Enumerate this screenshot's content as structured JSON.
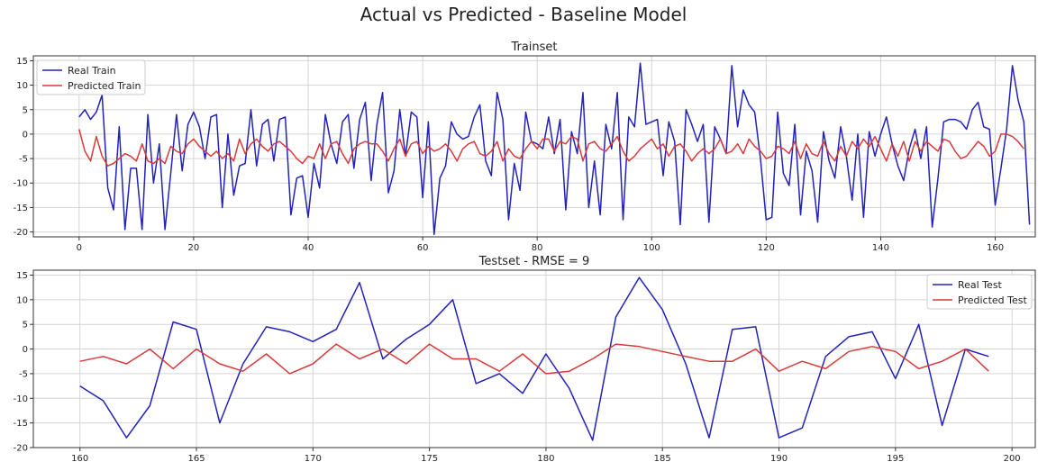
{
  "suptitle": "Actual vs Predicted - Baseline Model",
  "colors": {
    "real": "#2222bb",
    "predicted": "#d83a3a",
    "grid": "#d4d4d4",
    "frame": "#333333"
  },
  "chart_data": [
    {
      "type": "line",
      "title": "Trainset",
      "xlabel": "",
      "ylabel": "",
      "xlim": [
        -8,
        167
      ],
      "ylim": [
        -21,
        16
      ],
      "xticks": [
        0,
        20,
        40,
        60,
        80,
        100,
        120,
        140,
        160
      ],
      "yticks": [
        15,
        10,
        5,
        0,
        -5,
        -10,
        -15,
        -20
      ],
      "grid": true,
      "legend": "upper-left",
      "x_start": 0,
      "series": [
        {
          "name": "Real Train",
          "color": "#2222bb",
          "values": [
            3.5,
            5,
            3,
            4.5,
            8,
            -11,
            -15.5,
            1.5,
            -19.5,
            -7,
            -7,
            -19.5,
            4,
            -10,
            -2,
            -19.5,
            -8,
            4,
            -7.5,
            2,
            4.5,
            1.5,
            -5,
            3.5,
            4,
            -15,
            0,
            -12.5,
            -6.5,
            -6,
            5,
            -6.5,
            2,
            3,
            -5.5,
            3,
            3.5,
            -16.5,
            -9,
            -8.5,
            -17,
            -6,
            -11,
            4,
            -2,
            -6,
            2.5,
            4,
            -7,
            3,
            6.5,
            -9.5,
            2,
            8.5,
            -12,
            -7.5,
            5,
            -4.5,
            4.5,
            3.5,
            -13,
            2.5,
            -20.5,
            -9,
            -6.5,
            2.5,
            0,
            -1,
            -0.5,
            3.5,
            6,
            -5.5,
            -8.5,
            8.5,
            3,
            -17.5,
            -6,
            -11.5,
            4.5,
            -1.5,
            -2,
            -3,
            3.5,
            -4,
            3,
            -15.5,
            0.5,
            -4,
            8.5,
            -15,
            -5.5,
            -16.5,
            2,
            -3,
            8.5,
            -17.5,
            3.5,
            1.5,
            14.5,
            2,
            2.5,
            3,
            -8.5,
            2.5,
            -1.5,
            -18.5,
            5,
            2,
            -1.5,
            2,
            -18,
            1.5,
            -1,
            -4,
            14,
            1.5,
            9,
            6,
            4.5,
            -5,
            -17.5,
            -17,
            4.5,
            -8,
            -10.5,
            2,
            -16.5,
            -3.5,
            -7.5,
            -18,
            0.5,
            -5.5,
            -9,
            1.5,
            -4.5,
            -13.5,
            0,
            -17,
            0.5,
            -4.5,
            0,
            3.5,
            -2,
            -6.5,
            -9.5,
            -3,
            1,
            -5,
            1.5,
            -19,
            -9,
            2.5,
            3,
            3,
            2.5,
            1,
            5,
            6.5,
            1.5,
            1,
            -14.5,
            -7,
            1,
            14,
            7,
            2.5,
            -18.5
          ]
        },
        {
          "name": "Predicted Train",
          "color": "#d83a3a",
          "values": [
            1,
            -3.5,
            -5.5,
            -0.5,
            -4.5,
            -6.5,
            -6,
            -5,
            -4,
            -4.5,
            -5.5,
            -2,
            -5.5,
            -6,
            -5,
            -6,
            -2.5,
            -3.5,
            -4,
            -2,
            -1,
            -2.5,
            -3.5,
            -4.5,
            -3.5,
            -5,
            -4,
            -5.5,
            -1,
            -4,
            -2,
            -1,
            -2.5,
            -3.5,
            -2,
            -1.5,
            -2.5,
            -3.5,
            -5,
            -6,
            -4.5,
            -5,
            -2,
            -5,
            -2,
            -1.5,
            -4,
            -6,
            -3,
            -2,
            -1.5,
            -2,
            -2,
            -3.5,
            -5.5,
            -3,
            -1,
            -4.5,
            -2,
            -1.5,
            -4,
            -2.5,
            -3.5,
            -3,
            -2,
            -3.5,
            -5.5,
            -3,
            -2,
            -1.5,
            -4,
            -4.5,
            -3.5,
            -1.5,
            -5.5,
            -3,
            -4.5,
            -5,
            -3,
            -1.5,
            -3,
            -1,
            -1,
            -3.5,
            -1.5,
            -2,
            -0.5,
            -1,
            -5.5,
            -2,
            -1.5,
            -3,
            -3.5,
            -2,
            -0.5,
            -3.5,
            -5.5,
            -4.5,
            -3,
            -2,
            -1,
            -3,
            -2,
            -4.5,
            -2.5,
            -2,
            -3.5,
            -5.5,
            -4,
            -3,
            -4,
            -3,
            -1,
            -4,
            -3.5,
            -2,
            -4,
            -1,
            -2.5,
            -3.5,
            -5,
            -4.5,
            -2.5,
            -3,
            -4,
            -1.5,
            -5,
            -2,
            -4,
            -4.5,
            -1.5,
            -4,
            -5.5,
            -2.5,
            -4.5,
            -1.5,
            -3,
            -1,
            -2.5,
            -0.5,
            -3,
            -5.5,
            -2,
            -4.5,
            -1.5,
            -5.5,
            -1.5,
            -3.5,
            -1.5,
            -2.5,
            -3.5,
            -1,
            -1.5,
            -3.5,
            -5,
            -4.5,
            -3,
            -1.5,
            -2.5,
            -4.5,
            -3.5,
            0,
            0,
            -0.5,
            -1.5,
            -3
          ]
        }
      ]
    },
    {
      "type": "line",
      "title": "Testset - RMSE =  9",
      "xlabel": "",
      "ylabel": "",
      "xlim": [
        158,
        201
      ],
      "ylim": [
        -20,
        16
      ],
      "xticks": [
        160,
        165,
        170,
        175,
        180,
        185,
        190,
        195,
        200
      ],
      "yticks": [
        15,
        10,
        5,
        0,
        -5,
        -10,
        -15,
        -20
      ],
      "grid": true,
      "legend": "upper-right",
      "x_start": 160,
      "series": [
        {
          "name": "Real Test",
          "color": "#2222bb",
          "values": [
            -7.5,
            -10.5,
            -18,
            -11.5,
            5.5,
            4,
            -15,
            -3,
            4.5,
            3.5,
            1.5,
            4,
            13.5,
            -2,
            2,
            5,
            10,
            -7,
            -5,
            -9,
            -1,
            -8,
            -18.5,
            6.5,
            14.5,
            8,
            -3,
            -18,
            4,
            4.5,
            -18,
            -16,
            -1.5,
            2.5,
            3.5,
            -6,
            5,
            -15.5,
            0,
            -1.5
          ]
        },
        {
          "name": "Predicted Test",
          "color": "#d83a3a",
          "values": [
            -2.5,
            -1.5,
            -3,
            0,
            -4,
            0,
            -3,
            -4.5,
            -1,
            -5,
            -3,
            1,
            -2,
            0,
            -3,
            1,
            -2,
            -2,
            -4.5,
            -1,
            -5,
            -4.5,
            -2,
            1,
            0.5,
            -0.5,
            -1.5,
            -2.5,
            -2.5,
            0,
            -4.5,
            -2.5,
            -4,
            -0.5,
            0.5,
            -0.5,
            -4,
            -2.5,
            0,
            -4.5
          ]
        }
      ]
    }
  ]
}
